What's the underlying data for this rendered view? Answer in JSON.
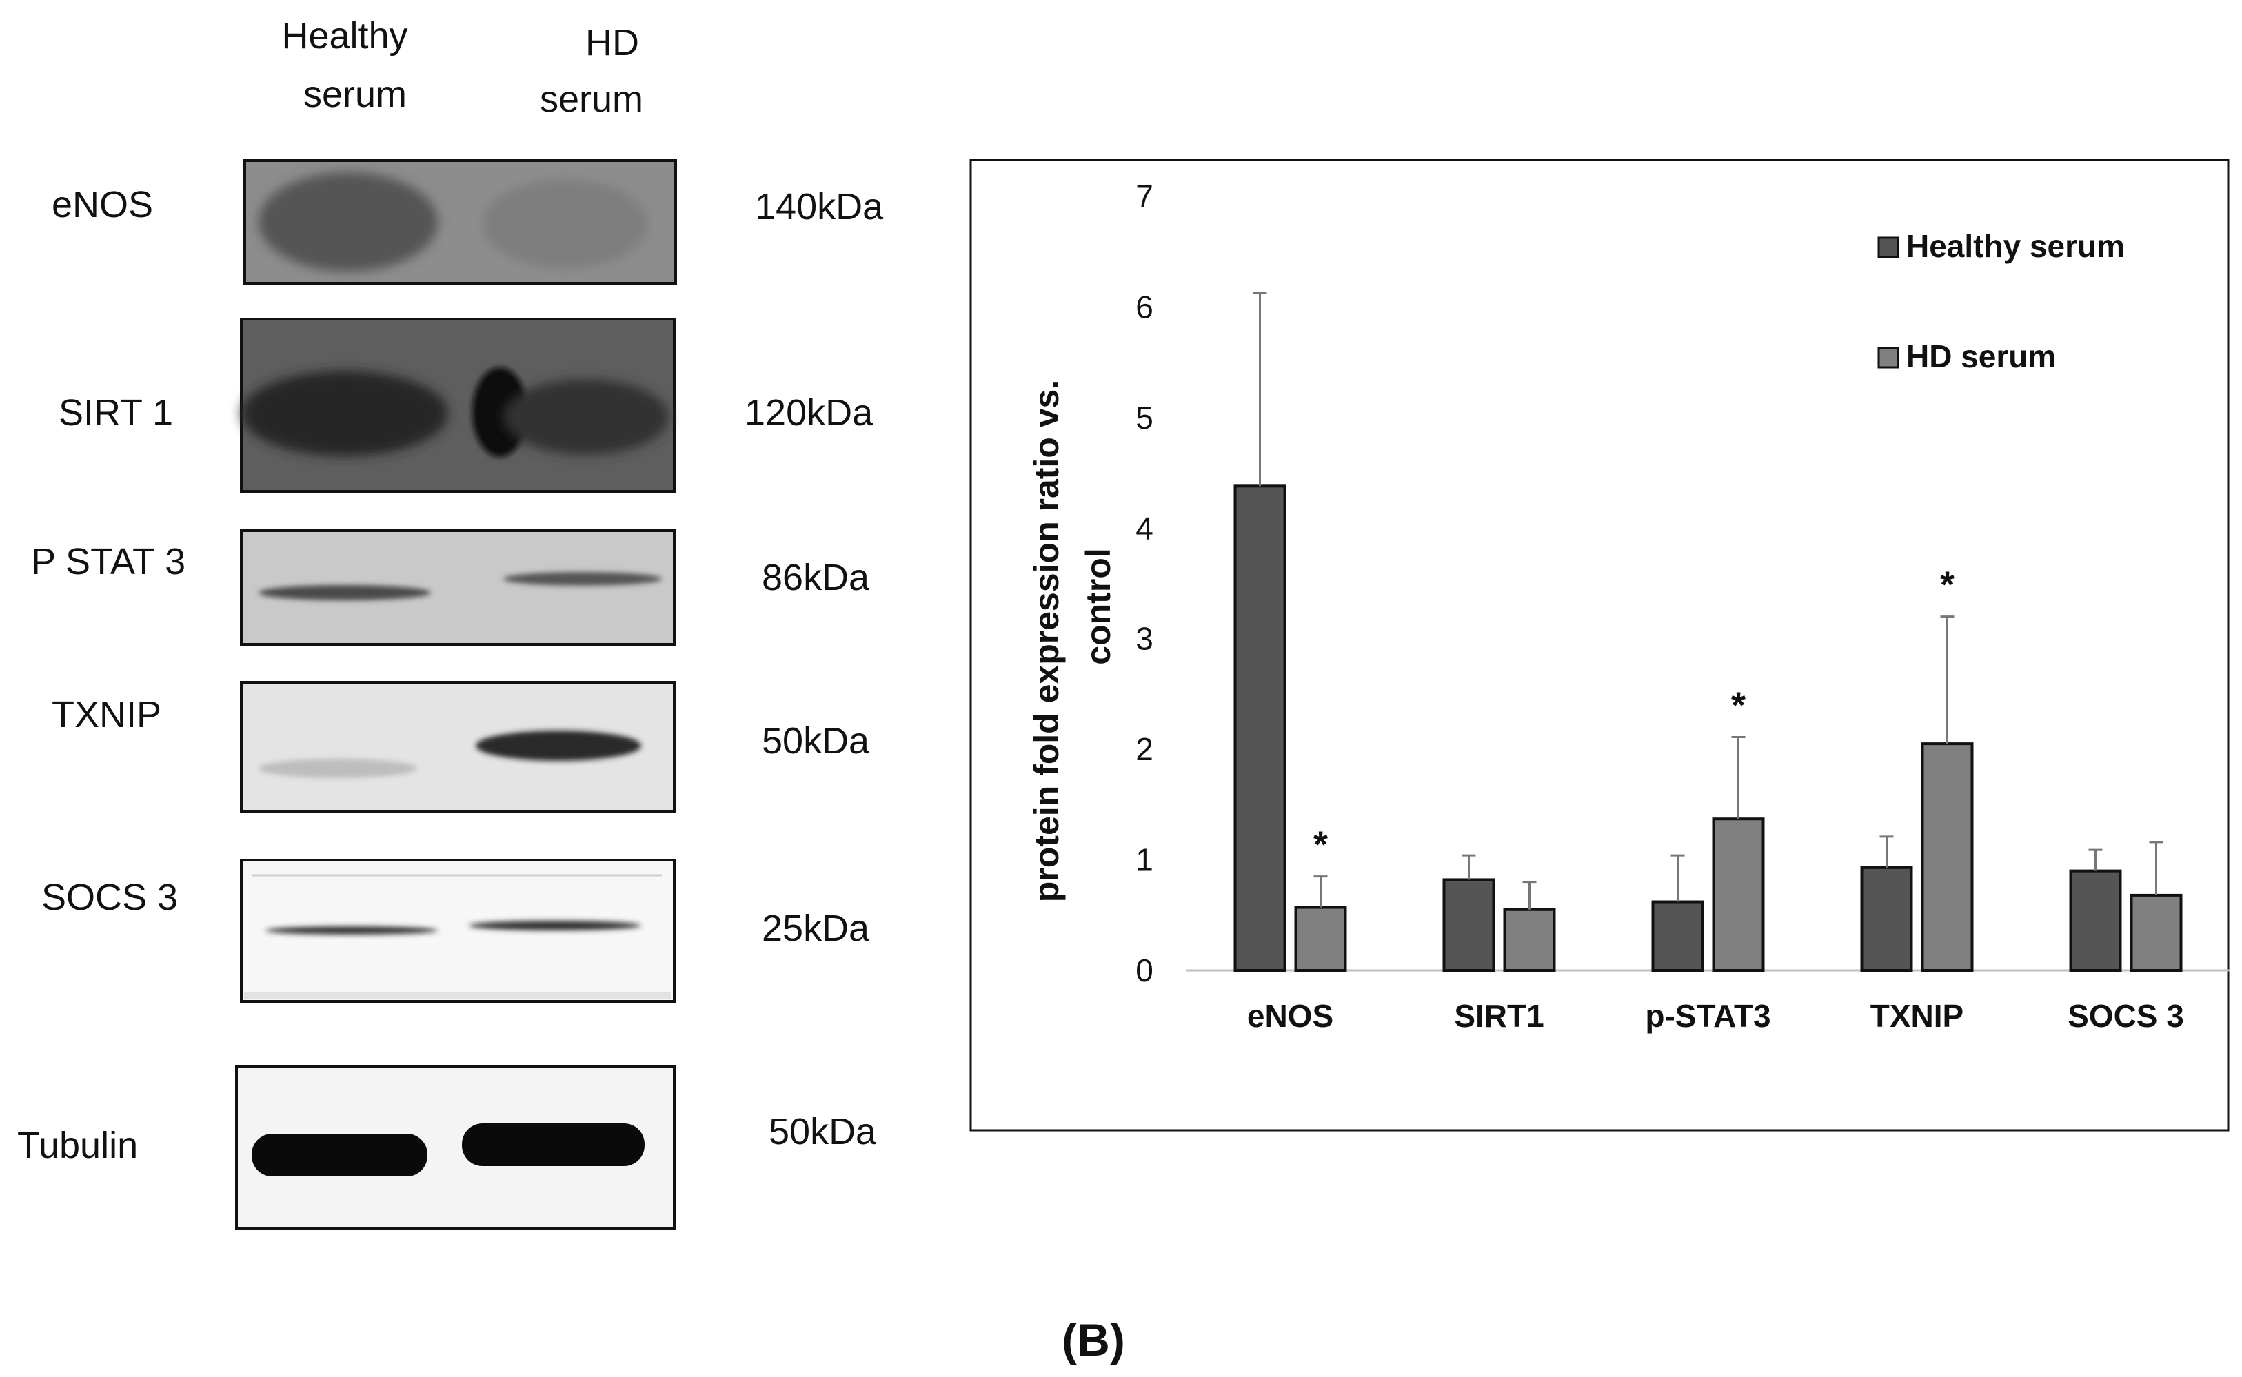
{
  "panel_label": "(B)",
  "blot": {
    "columns": [
      "Healthy serum",
      "HD serum"
    ],
    "column_lines": [
      [
        "Healthy",
        "serum"
      ],
      [
        "HD",
        "serum"
      ]
    ],
    "rows": [
      {
        "protein": "eNOS",
        "size": "140kDa"
      },
      {
        "protein": "SIRT 1",
        "size": "120kDa"
      },
      {
        "protein": "P STAT 3",
        "size": "86kDa"
      },
      {
        "protein": "TXNIP",
        "size": "50kDa"
      },
      {
        "protein": "SOCS 3",
        "size": "25kDa"
      },
      {
        "protein": "Tubulin",
        "size": "50kDa"
      }
    ]
  },
  "chart_data": {
    "type": "bar",
    "categories": [
      "eNOS",
      "SIRT1",
      "p-STAT3",
      "TXNIP",
      "SOCS 3"
    ],
    "series": [
      {
        "name": "Healthy serum",
        "color": "#555555",
        "values": [
          4.38,
          0.82,
          0.62,
          0.93,
          0.9
        ],
        "errors": [
          1.75,
          0.22,
          0.42,
          0.28,
          0.19
        ]
      },
      {
        "name": "HD serum",
        "color": "#808080",
        "values": [
          0.57,
          0.55,
          1.37,
          2.05,
          0.68
        ],
        "errors": [
          0.28,
          0.25,
          0.74,
          1.15,
          0.48
        ]
      }
    ],
    "significance": [
      "*",
      "",
      "*",
      "*",
      ""
    ],
    "ylabel_lines": [
      "protein fold expression ratio vs.",
      "control"
    ],
    "ylim": [
      0,
      7
    ],
    "yticks": [
      0,
      1,
      2,
      3,
      4,
      5,
      6,
      7
    ],
    "grid": false,
    "legend_position": "top-right"
  }
}
